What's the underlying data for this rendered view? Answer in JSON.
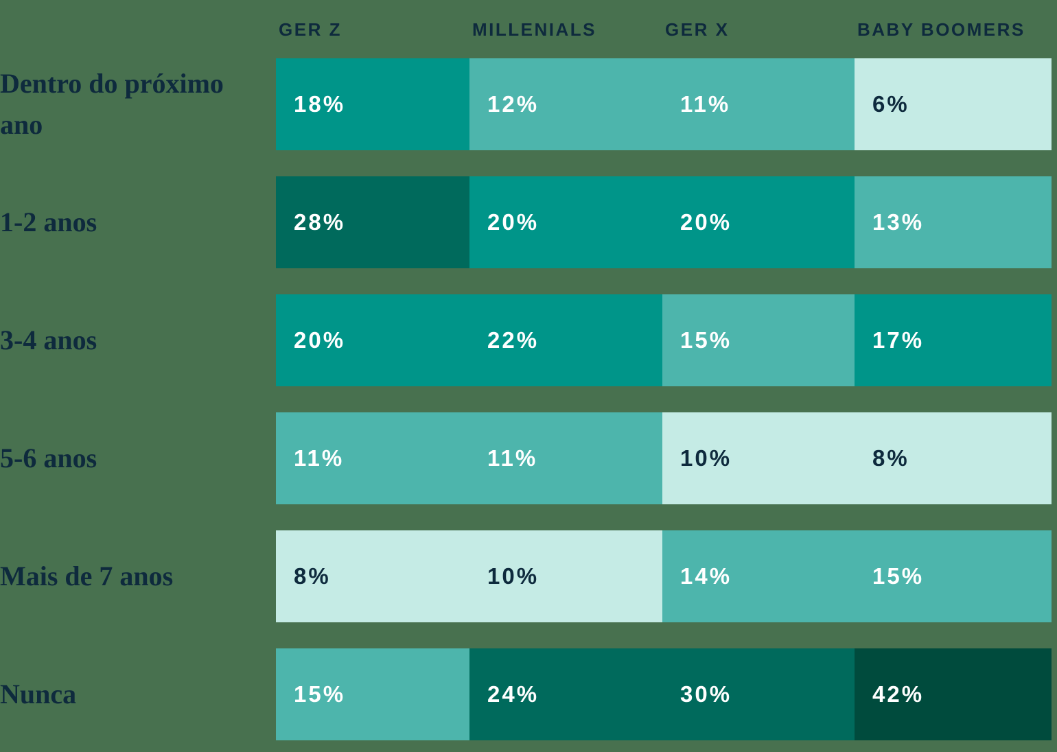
{
  "page": {
    "background_color": "#48714F",
    "text_color": "#0E2A3D"
  },
  "chart_data": {
    "type": "heatmap",
    "title": "",
    "columns": [
      "GER Z",
      "MILLENIALS",
      "GER X",
      "BABY BOOMERS"
    ],
    "rows": [
      "Dentro do próximo ano",
      "1-2 anos",
      "3-4 anos",
      "5-6 anos",
      "Mais de 7 anos",
      "Nunca"
    ],
    "values": [
      [
        18,
        12,
        11,
        6
      ],
      [
        28,
        20,
        20,
        13
      ],
      [
        20,
        22,
        15,
        17
      ],
      [
        11,
        11,
        10,
        8
      ],
      [
        8,
        10,
        14,
        15
      ],
      [
        15,
        24,
        30,
        42
      ]
    ],
    "unit": "%",
    "legend_position": "none",
    "grid": false,
    "color_scale": [
      {
        "range": "6-10",
        "bg": "#C5EBE5",
        "fg": "#0E2A3D"
      },
      {
        "range": "11-15",
        "bg": "#4DB5AC",
        "fg": "#FFFFFF"
      },
      {
        "range": "17-22",
        "bg": "#009589",
        "fg": "#FFFFFF"
      },
      {
        "range": "24-30",
        "bg": "#006A5C",
        "fg": "#FFFFFF"
      },
      {
        "range": "42",
        "bg": "#004B3D",
        "fg": "#FFFFFF"
      }
    ]
  },
  "table": {
    "rows": [
      {
        "label": "Dentro do próximo ano",
        "cells": [
          {
            "display": "18%",
            "bg": "#009589",
            "fg": "#FFFFFF"
          },
          {
            "display": "12%",
            "bg": "#4DB5AC",
            "fg": "#FFFFFF"
          },
          {
            "display": "11%",
            "bg": "#4DB5AC",
            "fg": "#FFFFFF"
          },
          {
            "display": "6%",
            "bg": "#C5EBE5",
            "fg": "#0E2A3D"
          }
        ]
      },
      {
        "label": "1-2 anos",
        "cells": [
          {
            "display": "28%",
            "bg": "#006A5C",
            "fg": "#FFFFFF"
          },
          {
            "display": "20%",
            "bg": "#009589",
            "fg": "#FFFFFF"
          },
          {
            "display": "20%",
            "bg": "#009589",
            "fg": "#FFFFFF"
          },
          {
            "display": "13%",
            "bg": "#4DB5AC",
            "fg": "#FFFFFF"
          }
        ]
      },
      {
        "label": "3-4 anos",
        "cells": [
          {
            "display": "20%",
            "bg": "#009589",
            "fg": "#FFFFFF"
          },
          {
            "display": "22%",
            "bg": "#009589",
            "fg": "#FFFFFF"
          },
          {
            "display": "15%",
            "bg": "#4DB5AC",
            "fg": "#FFFFFF"
          },
          {
            "display": "17%",
            "bg": "#009589",
            "fg": "#FFFFFF"
          }
        ]
      },
      {
        "label": "5-6 anos",
        "cells": [
          {
            "display": "11%",
            "bg": "#4DB5AC",
            "fg": "#FFFFFF"
          },
          {
            "display": "11%",
            "bg": "#4DB5AC",
            "fg": "#FFFFFF"
          },
          {
            "display": "10%",
            "bg": "#C5EBE5",
            "fg": "#0E2A3D"
          },
          {
            "display": "8%",
            "bg": "#C5EBE5",
            "fg": "#0E2A3D"
          }
        ]
      },
      {
        "label": "Mais de 7 anos",
        "cells": [
          {
            "display": "8%",
            "bg": "#C5EBE5",
            "fg": "#0E2A3D"
          },
          {
            "display": "10%",
            "bg": "#C5EBE5",
            "fg": "#0E2A3D"
          },
          {
            "display": "14%",
            "bg": "#4DB5AC",
            "fg": "#FFFFFF"
          },
          {
            "display": "15%",
            "bg": "#4DB5AC",
            "fg": "#FFFFFF"
          }
        ]
      },
      {
        "label": "Nunca",
        "cells": [
          {
            "display": "15%",
            "bg": "#4DB5AC",
            "fg": "#FFFFFF"
          },
          {
            "display": "24%",
            "bg": "#006A5C",
            "fg": "#FFFFFF"
          },
          {
            "display": "30%",
            "bg": "#006A5C",
            "fg": "#FFFFFF"
          },
          {
            "display": "42%",
            "bg": "#004B3D",
            "fg": "#FFFFFF"
          }
        ]
      }
    ]
  }
}
